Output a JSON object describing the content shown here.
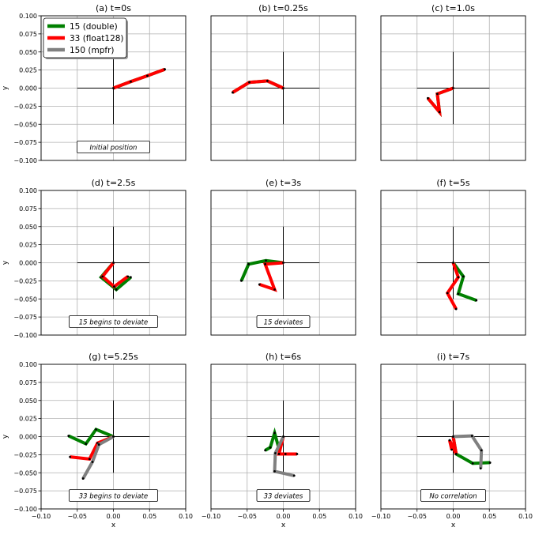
{
  "legend": {
    "placement": "top-left of panel (a)",
    "entries": [
      {
        "label": "15 (double)",
        "color": "#008000"
      },
      {
        "label": "33 (float128)",
        "color": "#ff0000"
      },
      {
        "label": "150 (mpfr)",
        "color": "#808080"
      }
    ]
  },
  "chart_data": [
    {
      "type": "line",
      "title": "(a) t=0s",
      "xlabel": "",
      "ylabel": "y",
      "xlim": [
        -0.1,
        0.1
      ],
      "ylim": [
        -0.1,
        0.1
      ],
      "grid": true,
      "xticks": [],
      "yticks": [
        "−0.100",
        "−0.075",
        "−0.050",
        "−0.025",
        "0.000",
        "0.025",
        "0.050",
        "0.075",
        "0.100"
      ],
      "annotation": "Initial position",
      "series": [
        {
          "name": "15 (double)",
          "color": "#008000",
          "x": [
            0.0,
            0.024,
            0.047,
            0.071
          ],
          "y": [
            0.0,
            0.009,
            0.017,
            0.026
          ]
        },
        {
          "name": "33 (float128)",
          "color": "#ff0000",
          "x": [
            0.0,
            0.024,
            0.047,
            0.071
          ],
          "y": [
            0.0,
            0.009,
            0.017,
            0.026
          ]
        }
      ]
    },
    {
      "type": "line",
      "title": "(b) t=0.25s",
      "xlabel": "",
      "ylabel": "",
      "xlim": [
        -0.1,
        0.1
      ],
      "ylim": [
        -0.1,
        0.1
      ],
      "grid": true,
      "xticks": [],
      "yticks": [],
      "annotation": "",
      "series": [
        {
          "name": "15 (double)",
          "color": "#008000",
          "x": [
            0.0,
            -0.022,
            -0.047,
            -0.07
          ],
          "y": [
            0.0,
            0.01,
            0.008,
            -0.006
          ]
        },
        {
          "name": "33 (float128)",
          "color": "#ff0000",
          "x": [
            0.0,
            -0.022,
            -0.047,
            -0.07
          ],
          "y": [
            0.0,
            0.01,
            0.008,
            -0.006
          ]
        }
      ]
    },
    {
      "type": "line",
      "title": "(c) t=1.0s",
      "xlabel": "",
      "ylabel": "",
      "xlim": [
        -0.1,
        0.1
      ],
      "ylim": [
        -0.1,
        0.1
      ],
      "grid": true,
      "xticks": [],
      "yticks": [],
      "annotation": "",
      "series": [
        {
          "name": "15 (double)",
          "color": "#008000",
          "x": [
            0.0,
            -0.022,
            -0.019,
            -0.035
          ],
          "y": [
            0.0,
            -0.008,
            -0.033,
            -0.014
          ]
        },
        {
          "name": "33 (float128)",
          "color": "#ff0000",
          "x": [
            0.0,
            -0.022,
            -0.019,
            -0.035
          ],
          "y": [
            0.0,
            -0.008,
            -0.033,
            -0.014
          ]
        }
      ]
    },
    {
      "type": "line",
      "title": "(d) t=2.5s",
      "xlabel": "",
      "ylabel": "y",
      "xlim": [
        -0.1,
        0.1
      ],
      "ylim": [
        -0.1,
        0.1
      ],
      "grid": true,
      "xticks": [],
      "yticks": [
        "−0.100",
        "−0.075",
        "−0.050",
        "−0.025",
        "0.000",
        "0.025",
        "0.050",
        "0.075",
        "0.100"
      ],
      "annotation": "15 begins to deviate",
      "series": [
        {
          "name": "15 (double)",
          "color": "#008000",
          "x": [
            0.0,
            -0.017,
            0.004,
            0.024
          ],
          "y": [
            0.0,
            -0.02,
            -0.037,
            -0.02
          ]
        },
        {
          "name": "33 (float128)",
          "color": "#ff0000",
          "x": [
            0.0,
            -0.015,
            0.001,
            0.02
          ],
          "y": [
            0.0,
            -0.019,
            -0.033,
            -0.019
          ]
        }
      ]
    },
    {
      "type": "line",
      "title": "(e) t=3s",
      "xlabel": "",
      "ylabel": "",
      "xlim": [
        -0.1,
        0.1
      ],
      "ylim": [
        -0.1,
        0.1
      ],
      "grid": true,
      "xticks": [],
      "yticks": [],
      "annotation": "15 deviates",
      "series": [
        {
          "name": "15 (double)",
          "color": "#008000",
          "x": [
            0.0,
            -0.024,
            -0.048,
            -0.058
          ],
          "y": [
            0.0,
            0.003,
            -0.002,
            -0.025
          ]
        },
        {
          "name": "33 (float128)",
          "color": "#ff0000",
          "x": [
            0.0,
            -0.025,
            -0.012,
            -0.033
          ],
          "y": [
            0.0,
            -0.002,
            -0.037,
            -0.03
          ]
        }
      ]
    },
    {
      "type": "line",
      "title": "(f) t=5s",
      "xlabel": "",
      "ylabel": "",
      "xlim": [
        -0.1,
        0.1
      ],
      "ylim": [
        -0.1,
        0.1
      ],
      "grid": true,
      "xticks": [],
      "yticks": [],
      "annotation": "",
      "series": [
        {
          "name": "15 (double)",
          "color": "#008000",
          "x": [
            0.0,
            0.014,
            0.007,
            0.032
          ],
          "y": [
            0.0,
            -0.019,
            -0.043,
            -0.052
          ]
        },
        {
          "name": "33 (float128)",
          "color": "#ff0000",
          "x": [
            0.0,
            0.007,
            -0.008,
            0.004
          ],
          "y": [
            0.0,
            -0.02,
            -0.042,
            -0.064
          ]
        }
      ]
    },
    {
      "type": "line",
      "title": "(g) t=5.25s",
      "xlabel": "x",
      "ylabel": "y",
      "xlim": [
        -0.1,
        0.1
      ],
      "ylim": [
        -0.1,
        0.1
      ],
      "grid": true,
      "xticks": [
        "−0.10",
        "−0.05",
        "0.00",
        "0.05",
        "0.10"
      ],
      "yticks": [
        "−0.100",
        "−0.075",
        "−0.050",
        "−0.025",
        "0.000",
        "0.025",
        "0.050",
        "0.075",
        "0.100"
      ],
      "annotation": "33 begins to deviate",
      "series": [
        {
          "name": "15 (double)",
          "color": "#008000",
          "x": [
            0.0,
            -0.024,
            -0.038,
            -0.062
          ],
          "y": [
            0.0,
            0.01,
            -0.01,
            0.001
          ]
        },
        {
          "name": "33 (float128)",
          "color": "#ff0000",
          "x": [
            0.0,
            -0.022,
            -0.033,
            -0.06
          ],
          "y": [
            0.0,
            -0.009,
            -0.031,
            -0.028
          ]
        },
        {
          "name": "150 (mpfr)",
          "color": "#808080",
          "x": [
            0.0,
            -0.02,
            -0.029,
            -0.042
          ],
          "y": [
            0.0,
            -0.011,
            -0.035,
            -0.058
          ]
        }
      ]
    },
    {
      "type": "line",
      "title": "(h) t=6s",
      "xlabel": "x",
      "ylabel": "",
      "xlim": [
        -0.1,
        0.1
      ],
      "ylim": [
        -0.1,
        0.1
      ],
      "grid": true,
      "xticks": [
        "−0.10",
        "−0.05",
        "0.00",
        "0.05",
        "0.10"
      ],
      "yticks": [],
      "annotation": "33 deviates",
      "series": [
        {
          "name": "15 (double)",
          "color": "#008000",
          "x": [
            -0.005,
            -0.012,
            -0.018,
            -0.025
          ],
          "y": [
            -0.02,
            0.005,
            -0.015,
            -0.019
          ]
        },
        {
          "name": "33 (float128)",
          "color": "#ff0000",
          "x": [
            0.0,
            -0.006,
            0.003,
            0.019
          ],
          "y": [
            0.0,
            -0.024,
            -0.024,
            -0.024
          ]
        },
        {
          "name": "150 (mpfr)",
          "color": "#808080",
          "x": [
            0.0,
            -0.011,
            -0.012,
            0.015
          ],
          "y": [
            0.0,
            -0.023,
            -0.048,
            -0.054
          ]
        }
      ]
    },
    {
      "type": "line",
      "title": "(i) t=7s",
      "xlabel": "x",
      "ylabel": "",
      "xlim": [
        -0.1,
        0.1
      ],
      "ylim": [
        -0.1,
        0.1
      ],
      "grid": true,
      "xticks": [
        "−0.10",
        "−0.05",
        "0.00",
        "0.05",
        "0.10"
      ],
      "yticks": [],
      "annotation": "No correlation",
      "series": [
        {
          "name": "15 (double)",
          "color": "#008000",
          "x": [
            0.0,
            0.004,
            0.027,
            0.051
          ],
          "y": [
            0.0,
            -0.024,
            -0.037,
            -0.036
          ]
        },
        {
          "name": "33 (float128)",
          "color": "#ff0000",
          "x": [
            0.0,
            0.004,
            -0.005,
            -0.002
          ],
          "y": [
            0.0,
            -0.024,
            -0.005,
            -0.018
          ]
        },
        {
          "name": "150 (mpfr)",
          "color": "#808080",
          "x": [
            0.0,
            0.026,
            0.039,
            0.038
          ],
          "y": [
            0.0,
            0.001,
            -0.019,
            -0.044
          ]
        }
      ]
    }
  ]
}
